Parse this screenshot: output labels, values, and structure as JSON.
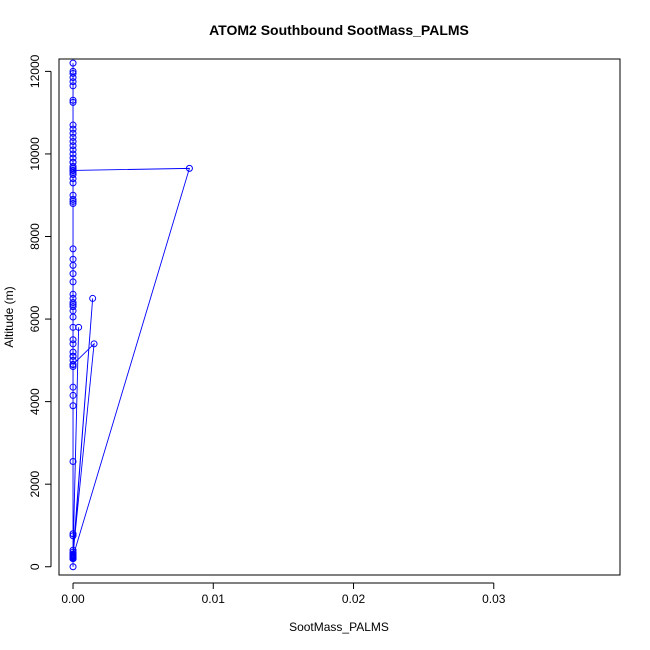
{
  "chart_data": {
    "type": "line",
    "title": "ATOM2 Southbound SootMass_PALMS",
    "xlabel": "SootMass_PALMS",
    "ylabel": "Altitude (m)",
    "xlim": [
      -0.001,
      0.039
    ],
    "ylim": [
      -200,
      12300
    ],
    "x_ticks": [
      0.0,
      0.01,
      0.02,
      0.03
    ],
    "x_tick_labels": [
      "0.00",
      "0.01",
      "0.02",
      "0.03"
    ],
    "y_ticks": [
      0,
      2000,
      4000,
      6000,
      8000,
      10000,
      12000
    ],
    "y_tick_labels": [
      "0",
      "2000",
      "4000",
      "6000",
      "8000",
      "10000",
      "12000"
    ],
    "grid": false,
    "color": "#0000ff",
    "marker": "open-circle",
    "series": [
      {
        "x": [
          0.0,
          0.0,
          0.0,
          0.0,
          0.0,
          0.0,
          0.0,
          0.0,
          0.0,
          0.0,
          0.0,
          0.0,
          0.0,
          0.0,
          0.0,
          0.0,
          0.0,
          0.0,
          0.0,
          0.0,
          0.0,
          0.0,
          0.0,
          0.0083,
          0.0,
          0.0,
          0.0,
          0.0,
          0.0,
          0.0,
          0.0,
          0.0,
          0.0,
          0.0,
          0.0014,
          0.0,
          0.0,
          0.0,
          0.0,
          0.0,
          0.0004,
          0.0,
          0.0,
          0.0,
          0.0,
          0.0015,
          0.0,
          0.0,
          0.0,
          0.0,
          0.0,
          0.0,
          0.0,
          0.0,
          0.0,
          0.0,
          0.0,
          0.0,
          0.0,
          0.0,
          0.0,
          0.0,
          0.0,
          0.0,
          0.0,
          0.0,
          0.0,
          0.0,
          0.0,
          0.0,
          0.0,
          0.0,
          0.0,
          0.0,
          0.0,
          0.0,
          0.0,
          0.0,
          0.0,
          0.0,
          0.0,
          0.0,
          0.0,
          0.0,
          0.0,
          0.0,
          0.0,
          0.0,
          0.0,
          0.0,
          0.0,
          0.0,
          0.0,
          0.0,
          0.0,
          0.0
        ],
        "y": [
          12200,
          12000,
          11950,
          11850,
          11750,
          11650,
          11300,
          11250,
          10700,
          10600,
          10500,
          10400,
          10300,
          10200,
          10100,
          10000,
          9900,
          9800,
          9700,
          9650,
          9600,
          9550,
          9600,
          9650,
          250,
          9500,
          9400,
          9300,
          8900,
          8800,
          8850,
          300,
          250,
          200,
          6500,
          300,
          250,
          200,
          6050,
          300,
          5800,
          250,
          200,
          9800,
          300,
          5400,
          4900,
          5100,
          9600,
          350,
          5100,
          4150,
          300,
          9000,
          750,
          0,
          9650,
          6350,
          800,
          4850,
          200,
          300,
          7700,
          7450,
          7300,
          7100,
          6900,
          6600,
          6500,
          6400,
          6300,
          6200,
          5800,
          5500,
          5400,
          5200,
          5000,
          4900,
          4350,
          3900,
          2550,
          400,
          300,
          250,
          200,
          220,
          240,
          260,
          280,
          230,
          210,
          250,
          300,
          270,
          230,
          200
        ],
        "x_extra_note": ""
      }
    ]
  }
}
